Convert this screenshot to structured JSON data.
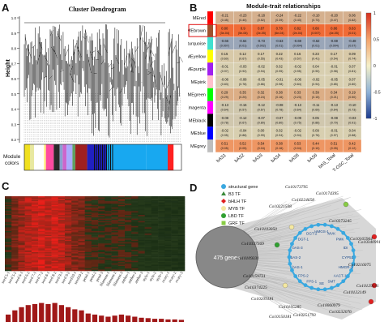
{
  "panels": {
    "a": "A",
    "b": "B",
    "c": "C",
    "d": "D"
  },
  "dendro": {
    "title": "Cluster Dendrogram",
    "ylabel": "Height",
    "yticks": [
      "1.0",
      "0.9",
      "0.8",
      "0.7",
      "0.6",
      "0.5",
      "0.4",
      "0.3",
      "0.2"
    ],
    "colors_label": [
      "Module",
      "colors"
    ],
    "color_strip": [
      "#f0e020",
      "#e8e8a0",
      "#ffffff",
      "#fff080",
      "#ff4aa0",
      "#2a2a2a",
      "#8aa0d0",
      "#cc66cc",
      "#aaaaff",
      "#60a060",
      "#a02020",
      "#2020c0",
      "#18a8f0",
      "#18a8f0",
      "#ff2020",
      "#ffffff"
    ]
  },
  "heatmap_b": {
    "title": "Module-trait relationships",
    "rows": [
      "MEred",
      "MEbrown",
      "MEturquoise",
      "MEyellow",
      "MEpurple",
      "MEpink",
      "MEgreen",
      "MEmagenta",
      "MEblack",
      "MEblue",
      "MEgrey"
    ],
    "row_colors": [
      "#ff0000",
      "#a0522d",
      "#40e0d0",
      "#ffff00",
      "#a020f0",
      "#ffc0cb",
      "#00ff00",
      "#ff00ff",
      "#000000",
      "#0000ff",
      "#bebebe"
    ],
    "cols": [
      "bAS1",
      "bAS2",
      "bAS3",
      "bAS4",
      "bAS5",
      "bAS6",
      "bAS_Total",
      "T-OSC_Total"
    ],
    "cells": [
      [
        "-0.21\n(0.45)",
        "-0.23\n(0.40)",
        "-0.18\n(0.52)",
        "-0.24\n(0.39)",
        "-0.22\n(0.43)",
        "-0.10\n(0.73)",
        "-0.20\n(0.47)",
        "0.06\n(0.82)"
      ],
      [
        "0.80\n(3e-04)",
        "0.9\n(5e-06)",
        "0.87\n(2e-05)",
        "0.78\n(6e-04)",
        "0.82\n(2e-04)",
        "0.66\n(0.007)",
        "0.86\n(4e-05)",
        "0.63\n(0.01)"
      ],
      [
        "-0.66\n(0.007)",
        "-0.64\n(0.01)",
        "-0.73\n(0.002)",
        "-0.63\n(0.01)",
        "-0.69\n(0.004)",
        "-0.62\n(0.01)",
        "-0.69\n(0.004)",
        "-0.48\n(0.07)"
      ],
      [
        "0.15\n(0.60)",
        "0.12\n(0.67)",
        "0.17\n(0.55)",
        "0.22\n(0.43)",
        "0.16\n(0.57)",
        "0.23\n(0.41)",
        "0.17\n(0.54)",
        "0.09\n(0.74)"
      ],
      [
        "-0.01\n(0.97)",
        "-0.03\n(0.92)",
        "-0.02\n(0.94)",
        "0.02\n(0.95)",
        "-0.02\n(0.95)",
        "0.04\n(0.90)",
        "-0.01\n(0.98)",
        "0.07\n(0.81)"
      ],
      [
        "-0.06\n(0.83)",
        "-0.08\n(0.78)",
        "-0.05\n(0.86)",
        "-0.01\n(0.98)",
        "-0.06\n(0.84)",
        "-0.02\n(0.94)",
        "-0.05\n(0.85)",
        "0.07\n(0.80)"
      ],
      [
        "0.29\n(0.29)",
        "0.35\n(0.20)",
        "0.32\n(0.24)",
        "0.38\n(0.16)",
        "0.33\n(0.23)",
        "0.39\n(0.15)",
        "0.34\n(0.21)",
        "0.19\n(0.50)"
      ],
      [
        "-0.13\n(0.64)",
        "-0.16\n(0.57)",
        "-0.12\n(0.67)",
        "-0.08\n(0.78)",
        "-0.13\n(0.64)",
        "-0.11\n(0.69)",
        "-0.13\n(0.64)",
        "-0.10\n(0.73)"
      ],
      [
        "-0.08\n(0.78)",
        "-0.12\n(0.67)",
        "-0.07\n(0.80)",
        "-0.07\n(0.80)",
        "-0.09\n(0.75)",
        "0.05\n(0.86)",
        "-0.08\n(0.79)",
        "-0.03\n(0.91)"
      ],
      [
        "-0.02\n(0.95)",
        "-0.04\n(0.88)",
        "0.00\n(0.99)",
        "0.02\n(0.94)",
        "-0.02\n(0.94)",
        "0.09\n(0.76)",
        "-0.01\n(0.97)",
        "0.04\n(0.88)"
      ],
      [
        "0.51\n(0.05)",
        "0.52\n(0.05)",
        "0.54\n(0.04)",
        "0.38\n(0.16)",
        "0.53\n(0.04)",
        "0.44\n(0.10)",
        "0.51\n(0.05)",
        "0.42\n(0.12)"
      ]
    ],
    "colors": [
      "#d5b08e",
      "#f06b36",
      "#9aa6b8",
      "#d8c9a8",
      "#d8cfb0",
      "#d8cfb0",
      "#dcae86",
      "#cfc7ad",
      "#d0c7ae",
      "#d8cfb0",
      "#ee9663"
    ],
    "brown_color": "#e84a20",
    "colorbar_ticks": [
      "1",
      "0.5",
      "0",
      "-0.5",
      "-1"
    ]
  },
  "heatmap_c": {
    "samples": [
      "seed 5-1",
      "seed 5-2",
      "seed 6-1",
      "seed 6-2",
      "seed 7-1",
      "seed 7-2",
      "seed 8-1",
      "seed 8-2",
      "seed 9-1",
      "seed 9-2",
      "seed10-1",
      "seed10-2",
      "petal-1",
      "petal-2",
      "petal-3",
      "filament-1",
      "filament-2",
      "filament-3",
      "anther-1",
      "anther-2",
      "anther-3",
      "style-1",
      "style-2",
      "style-3",
      "ovary-1",
      "ovary-2",
      "ovary-3"
    ],
    "bars": [
      0.35,
      0.55,
      0.7,
      0.8,
      0.85,
      0.9,
      0.85,
      0.9,
      0.8,
      0.7,
      0.6,
      0.55,
      0.4,
      0.35,
      0.3,
      0.25,
      0.3,
      0.35,
      0.3,
      0.25,
      0.2,
      0.18,
      0.15,
      0.15,
      0.12,
      0.12,
      0.1
    ],
    "bar_color": "#a01818"
  },
  "network": {
    "legend": [
      {
        "label": "structural gene",
        "color": "#3aa8e0",
        "shape": "circle"
      },
      {
        "label": "B3 TF",
        "color": "#3a8a3a",
        "shape": "triangle"
      },
      {
        "label": "bHLH TF",
        "color": "#e02020",
        "shape": "diamond"
      },
      {
        "label": "MYB TF",
        "color": "#f4e8a0",
        "shape": "circle"
      },
      {
        "label": "LBD TF",
        "color": "#30a030",
        "shape": "circle"
      },
      {
        "label": "GRF TF",
        "color": "#88cc44",
        "shape": "square"
      }
    ],
    "big_node_label": "475 genes",
    "genes": [
      "Co10173795",
      "Co10174395",
      "Co10224658",
      "Co10221508",
      "Co10103050",
      "Co10373245",
      "Co10337369",
      "Co10165964",
      "Co10216075",
      "Co10109331",
      "Co10159731",
      "Co10374225",
      "Co10209181",
      "Co10195285",
      "Co10060979",
      "Co10232076",
      "Co10251793",
      "Co10150181",
      "Co10340991",
      "Co10129501",
      "Co10122149"
    ],
    "inner_labels": [
      "CYP51",
      "HMGR-1",
      "AACT-1",
      "SMT",
      "SE",
      "FPS-1",
      "FPS-2",
      "bAS-1",
      "bAS-2",
      "bAS-3",
      "DGT-1",
      "DGT-2",
      "HMGS-1",
      "MVK",
      "PMK",
      "IDI"
    ]
  }
}
